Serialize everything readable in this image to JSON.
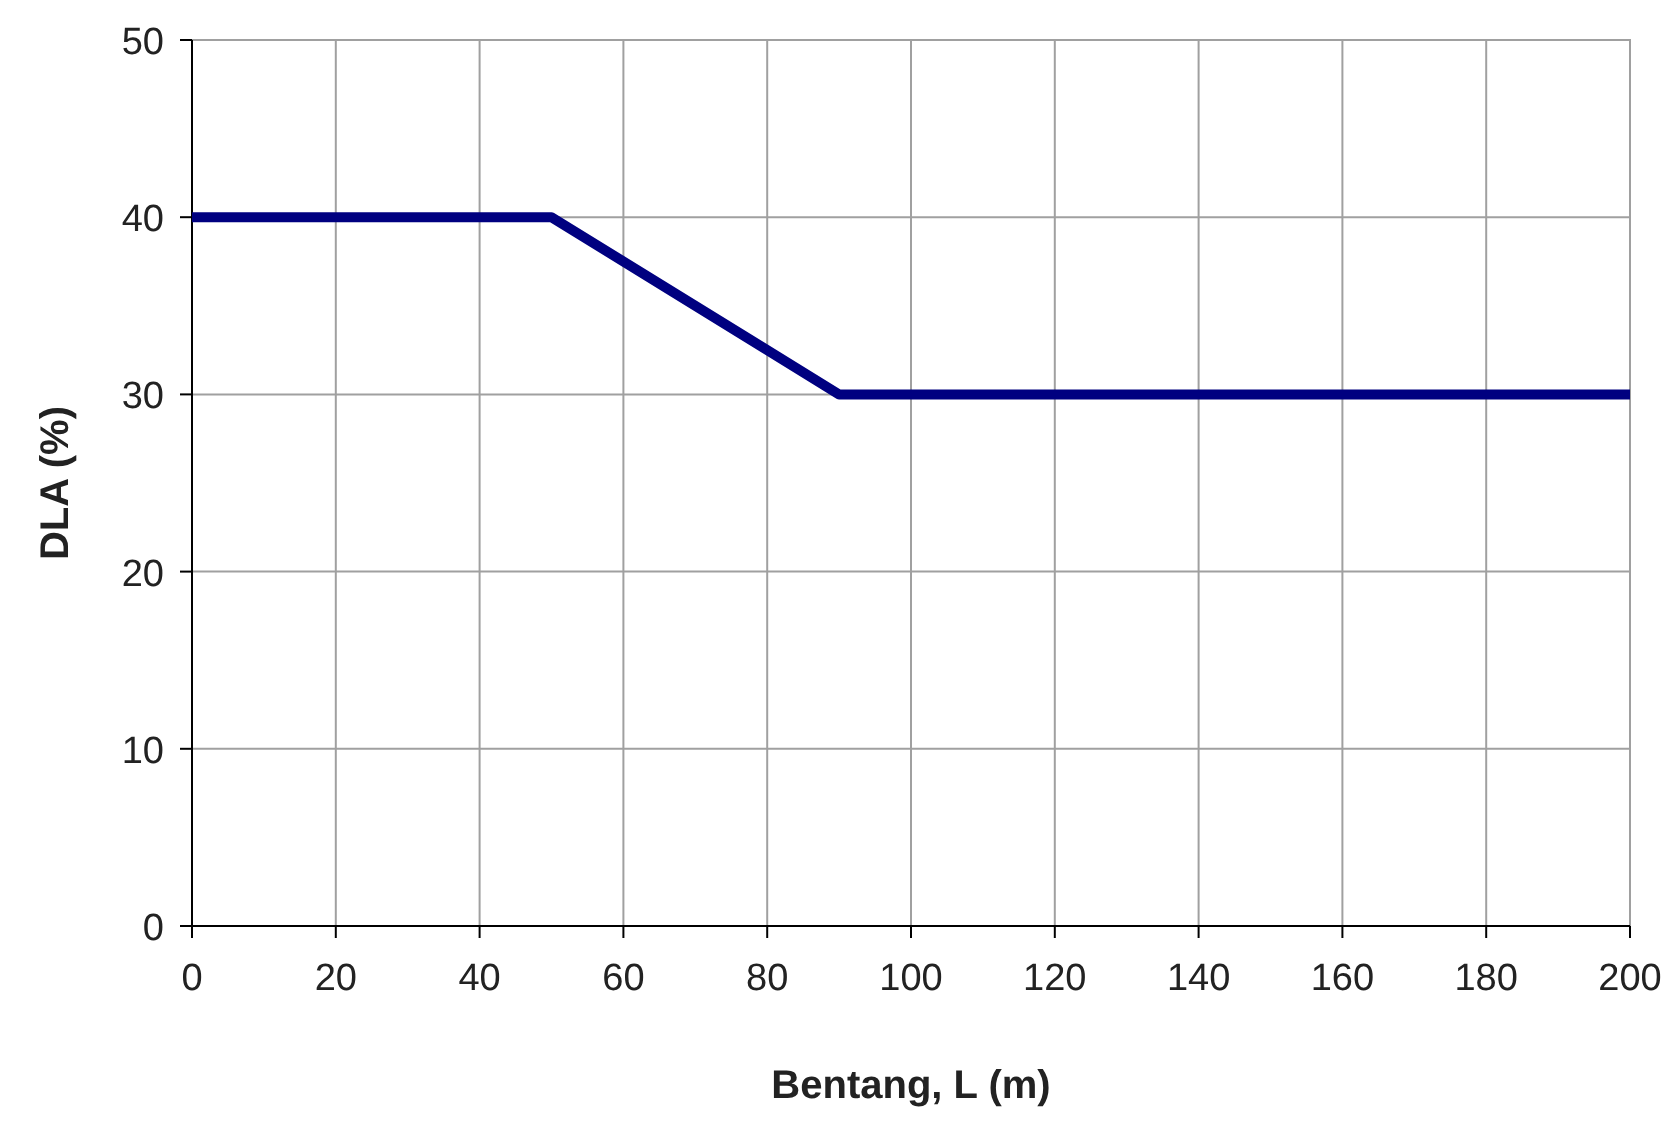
{
  "chart_data": {
    "type": "line",
    "xlabel": "Bentang, L (m)",
    "ylabel": "DLA (%)",
    "x": [
      0,
      50,
      90,
      200
    ],
    "series": [
      {
        "color": "#000080",
        "values": [
          40,
          40,
          30,
          30
        ]
      }
    ],
    "xlim": [
      0,
      200
    ],
    "xticks": [
      0,
      20,
      40,
      60,
      80,
      100,
      120,
      140,
      160,
      180,
      200
    ],
    "ylim": [
      0,
      50
    ],
    "yticks": [
      0,
      10,
      20,
      30,
      40,
      50
    ],
    "grid": true,
    "marker": "none",
    "line_style": "solid"
  }
}
